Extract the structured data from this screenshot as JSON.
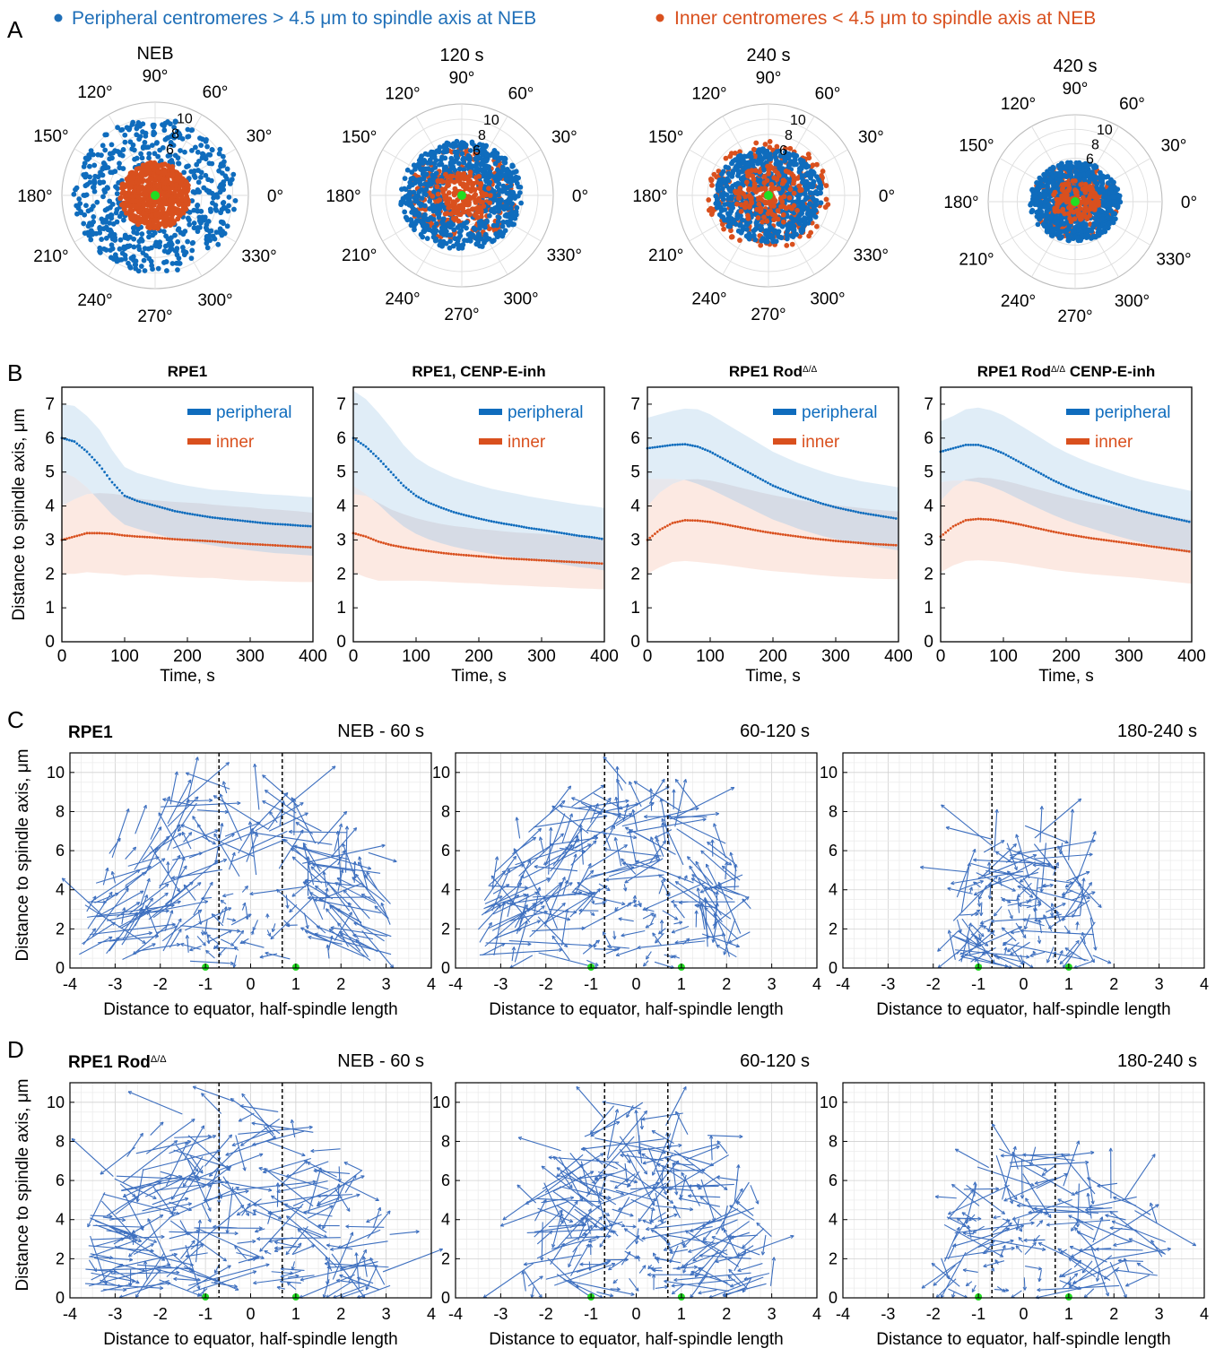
{
  "colors": {
    "peripheral": "#0f6cbd",
    "inner": "#d9501e",
    "pole": "#22dd22",
    "arrow": "#3d6fbf",
    "band_peripheral": "#dbeaf6",
    "band_inner": "#fbe5dd"
  },
  "panel_labels": [
    "A",
    "B",
    "C",
    "D"
  ],
  "legend": {
    "peripheral": "Peripheral centromeres > 4.5 μm to spindle axis at NEB",
    "inner": "Inner centromeres < 4.5 μm to spindle axis at NEB"
  },
  "chart_data": [
    {
      "type": "scatter",
      "polar": true,
      "panel": "A",
      "titles": [
        "NEB",
        "120 s",
        "240 s",
        "420 s"
      ],
      "angle_labels": [
        "0°",
        "30°",
        "60°",
        "90°",
        "120°",
        "150°",
        "180°",
        "210°",
        "240°",
        "270°",
        "300°",
        "330°"
      ],
      "radial_ticks": [
        "6",
        "8",
        "10"
      ],
      "rmax": 12,
      "series": [
        {
          "name": "Peripheral centromeres > 4.5 μm to spindle axis at NEB",
          "radius_range_by_time": [
            [
              4.5,
              10.5
            ],
            [
              2.5,
              7.5
            ],
            [
              1.5,
              6.5
            ],
            [
              1.0,
              5.8
            ]
          ]
        },
        {
          "name": "Inner centromeres < 4.5 μm to spindle axis at NEB",
          "radius_range_by_time": [
            [
              0,
              4.5
            ],
            [
              0,
              6.5
            ],
            [
              0,
              7.5
            ],
            [
              0,
              5.5
            ]
          ]
        }
      ]
    },
    {
      "type": "line",
      "panel": "B",
      "titles": [
        "RPE1",
        "RPE1, CENP-E-inh",
        "RPE1 Rod",
        "RPE1 Rod"
      ],
      "title_suffix": [
        "",
        "",
        "",
        " CENP-E-inh"
      ],
      "title_superscript": "Δ/Δ",
      "xlabel": "Time, s",
      "ylabel": "Distance to spindle axis, μm",
      "xlim": [
        0,
        400
      ],
      "ylim": [
        0,
        7.5
      ],
      "xticks": [
        "0",
        "100",
        "200",
        "300",
        "400"
      ],
      "yticks": [
        "0",
        "1",
        "2",
        "3",
        "4",
        "5",
        "6",
        "7"
      ],
      "legend_labels": [
        "peripheral",
        "inner"
      ],
      "x": [
        0,
        20,
        40,
        60,
        80,
        100,
        120,
        140,
        160,
        180,
        200,
        220,
        240,
        260,
        280,
        300,
        320,
        340,
        360,
        380,
        400
      ],
      "panels": [
        {
          "peripheral": [
            6.0,
            5.9,
            5.6,
            5.2,
            4.7,
            4.3,
            4.15,
            4.05,
            3.95,
            3.85,
            3.78,
            3.72,
            3.66,
            3.62,
            3.58,
            3.54,
            3.5,
            3.47,
            3.45,
            3.42,
            3.4
          ],
          "peripheral_sd": [
            1.0,
            1.05,
            1.05,
            1.05,
            0.95,
            0.85,
            0.82,
            0.82,
            0.82,
            0.82,
            0.82,
            0.82,
            0.82,
            0.84,
            0.84,
            0.85,
            0.85,
            0.86,
            0.86,
            0.86,
            0.86
          ],
          "inner": [
            3.0,
            3.1,
            3.2,
            3.2,
            3.18,
            3.13,
            3.1,
            3.08,
            3.05,
            3.02,
            3.0,
            2.98,
            2.96,
            2.93,
            2.9,
            2.88,
            2.86,
            2.84,
            2.82,
            2.8,
            2.78
          ],
          "inner_sd": [
            1.0,
            1.1,
            1.15,
            1.18,
            1.18,
            1.18,
            1.12,
            1.1,
            1.1,
            1.1,
            1.1,
            1.1,
            1.08,
            1.08,
            1.08,
            1.08,
            1.06,
            1.06,
            1.05,
            1.04,
            1.02
          ]
        },
        {
          "peripheral": [
            6.0,
            5.75,
            5.4,
            5.0,
            4.6,
            4.3,
            4.1,
            3.95,
            3.82,
            3.72,
            3.63,
            3.55,
            3.48,
            3.42,
            3.35,
            3.3,
            3.24,
            3.18,
            3.12,
            3.08,
            3.02
          ],
          "peripheral_sd": [
            1.4,
            1.4,
            1.35,
            1.3,
            1.2,
            1.12,
            1.08,
            1.05,
            1.02,
            1.0,
            0.98,
            0.96,
            0.95,
            0.94,
            0.93,
            0.92,
            0.92,
            0.92,
            0.92,
            0.92,
            0.92
          ],
          "inner": [
            3.2,
            3.1,
            2.95,
            2.85,
            2.78,
            2.72,
            2.67,
            2.62,
            2.58,
            2.55,
            2.52,
            2.49,
            2.46,
            2.44,
            2.42,
            2.4,
            2.38,
            2.36,
            2.34,
            2.32,
            2.3
          ],
          "inner_sd": [
            1.15,
            1.2,
            1.15,
            1.05,
            0.98,
            0.92,
            0.88,
            0.85,
            0.83,
            0.82,
            0.8,
            0.8,
            0.79,
            0.78,
            0.78,
            0.78,
            0.77,
            0.77,
            0.77,
            0.76,
            0.76
          ]
        },
        {
          "peripheral": [
            5.7,
            5.75,
            5.8,
            5.82,
            5.75,
            5.6,
            5.4,
            5.2,
            5.0,
            4.8,
            4.6,
            4.45,
            4.3,
            4.18,
            4.06,
            3.96,
            3.88,
            3.8,
            3.74,
            3.68,
            3.62
          ],
          "peripheral_sd": [
            0.9,
            0.95,
            1.0,
            1.05,
            1.1,
            1.1,
            1.08,
            1.06,
            1.04,
            1.02,
            1.0,
            0.98,
            0.97,
            0.96,
            0.95,
            0.94,
            0.94,
            0.93,
            0.93,
            0.93,
            0.93
          ],
          "inner": [
            3.0,
            3.3,
            3.5,
            3.58,
            3.57,
            3.53,
            3.47,
            3.4,
            3.33,
            3.26,
            3.2,
            3.15,
            3.1,
            3.05,
            3.01,
            2.97,
            2.94,
            2.91,
            2.88,
            2.86,
            2.84
          ],
          "inner_sd": [
            1.0,
            1.1,
            1.15,
            1.2,
            1.22,
            1.22,
            1.2,
            1.18,
            1.16,
            1.14,
            1.12,
            1.1,
            1.08,
            1.07,
            1.06,
            1.05,
            1.04,
            1.03,
            1.02,
            1.01,
            1.0
          ]
        },
        {
          "peripheral": [
            5.6,
            5.7,
            5.8,
            5.8,
            5.7,
            5.55,
            5.35,
            5.15,
            4.95,
            4.75,
            4.58,
            4.43,
            4.3,
            4.18,
            4.06,
            3.95,
            3.85,
            3.76,
            3.68,
            3.6,
            3.52
          ],
          "peripheral_sd": [
            0.9,
            0.95,
            1.05,
            1.1,
            1.12,
            1.12,
            1.1,
            1.08,
            1.05,
            1.02,
            1.0,
            0.98,
            0.96,
            0.95,
            0.94,
            0.93,
            0.92,
            0.92,
            0.92,
            0.92,
            0.92
          ],
          "inner": [
            3.1,
            3.4,
            3.58,
            3.62,
            3.6,
            3.55,
            3.48,
            3.4,
            3.32,
            3.24,
            3.17,
            3.11,
            3.05,
            3.0,
            2.95,
            2.9,
            2.85,
            2.8,
            2.75,
            2.7,
            2.65
          ],
          "inner_sd": [
            1.05,
            1.15,
            1.2,
            1.22,
            1.22,
            1.2,
            1.18,
            1.16,
            1.14,
            1.12,
            1.1,
            1.08,
            1.06,
            1.04,
            1.02,
            1.0,
            0.98,
            0.97,
            0.96,
            0.95,
            0.94
          ]
        }
      ]
    },
    {
      "type": "scatter",
      "subtype": "vector-field",
      "panel": "C",
      "row_label": "RPE1",
      "titles": [
        "NEB - 60 s",
        "60-120 s",
        "180-240 s"
      ],
      "xlabel": "Distance to equator, half-spindle length",
      "ylabel": "Distance to spindle axis, μm",
      "xlim": [
        -4,
        4
      ],
      "ylim": [
        0,
        11
      ],
      "xticks": [
        "-4",
        "-3",
        "-2",
        "-1",
        "0",
        "1",
        "2",
        "3",
        "4"
      ],
      "yticks": [
        "0",
        "2",
        "4",
        "6",
        "8",
        "10"
      ],
      "dashed_lines_x": [
        -0.7,
        0.7
      ],
      "poles_x": [
        -1,
        1
      ],
      "extent": [
        [
          -3.8,
          3.2,
          9.5
        ],
        [
          -3.5,
          2.6,
          9.5
        ],
        [
          -1.6,
          1.6,
          7.5
        ]
      ]
    },
    {
      "type": "scatter",
      "subtype": "vector-field",
      "panel": "D",
      "row_label": "RPE1 Rod",
      "titles": [
        "NEB - 60 s",
        "60-120 s",
        "180-240 s"
      ],
      "xlabel": "Distance to equator, half-spindle length",
      "ylabel": "Distance to spindle axis, μm",
      "xlim": [
        -4,
        4
      ],
      "ylim": [
        0,
        11
      ],
      "xticks": [
        "-4",
        "-3",
        "-2",
        "-1",
        "0",
        "1",
        "2",
        "3",
        "4"
      ],
      "yticks": [
        "0",
        "2",
        "4",
        "6",
        "8",
        "10"
      ],
      "dashed_lines_x": [
        -0.7,
        0.7
      ],
      "poles_x": [
        -1,
        1
      ],
      "extent": [
        [
          -3.7,
          3.1,
          10.2
        ],
        [
          -2.5,
          3.0,
          10.0
        ],
        [
          -1.9,
          3.2,
          8.0
        ]
      ]
    }
  ]
}
